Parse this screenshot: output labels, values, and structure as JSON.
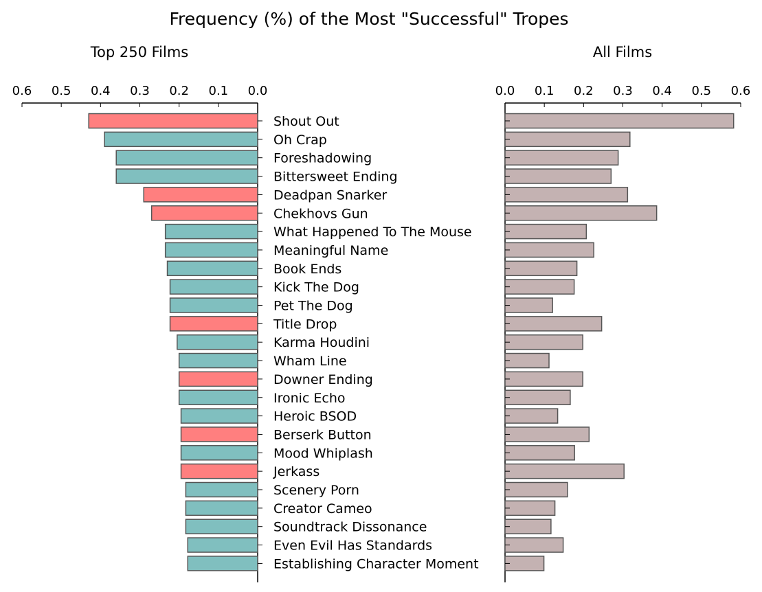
{
  "figure": {
    "title": "Frequency (%) of the Most \"Successful\" Tropes"
  },
  "colors": {
    "teal": "#80bfbf",
    "red": "#ff7f7f",
    "rose": "#c4b2b2",
    "edge": "#555555"
  },
  "chart_data": [
    {
      "type": "bar",
      "orientation": "horizontal",
      "x_direction": "reversed",
      "title": "Top 250 Films",
      "xlim": [
        0.6,
        0.0
      ],
      "xticks": [
        "0.6",
        "0.5",
        "0.4",
        "0.3",
        "0.2",
        "0.1",
        "0.0"
      ],
      "tick_values": [
        0.6,
        0.5,
        0.4,
        0.3,
        0.2,
        0.1,
        0.0
      ],
      "categories": [
        "Shout Out",
        "Oh Crap",
        "Foreshadowing",
        "Bittersweet Ending",
        "Deadpan Snarker",
        "Chekhovs Gun",
        "What Happened To The Mouse",
        "Meaningful Name",
        "Book Ends",
        "Kick The Dog",
        "Pet The Dog",
        "Title Drop",
        "Karma Houdini",
        "Wham Line",
        "Downer Ending",
        "Ironic Echo",
        "Heroic BSOD",
        "Berserk Button",
        "Mood Whiplash",
        "Jerkass",
        "Scenery Porn",
        "Creator Cameo",
        "Soundtrack Dissonance",
        "Even Evil Has Standards",
        "Establishing Character Moment"
      ],
      "values": [
        0.43,
        0.39,
        0.36,
        0.36,
        0.29,
        0.27,
        0.235,
        0.235,
        0.23,
        0.223,
        0.223,
        0.223,
        0.205,
        0.2,
        0.2,
        0.2,
        0.195,
        0.195,
        0.195,
        0.195,
        0.183,
        0.183,
        0.183,
        0.178,
        0.178
      ],
      "bar_colors": [
        "red",
        "teal",
        "teal",
        "teal",
        "red",
        "red",
        "teal",
        "teal",
        "teal",
        "teal",
        "teal",
        "red",
        "teal",
        "teal",
        "red",
        "teal",
        "teal",
        "red",
        "teal",
        "red",
        "teal",
        "teal",
        "teal",
        "teal",
        "teal"
      ]
    },
    {
      "type": "bar",
      "orientation": "horizontal",
      "title": "All Films",
      "xlim": [
        0.0,
        0.6
      ],
      "xticks": [
        "0.0",
        "0.1",
        "0.2",
        "0.3",
        "0.4",
        "0.5",
        "0.6"
      ],
      "tick_values": [
        0.0,
        0.1,
        0.2,
        0.3,
        0.4,
        0.5,
        0.6
      ],
      "categories": [
        "Shout Out",
        "Oh Crap",
        "Foreshadowing",
        "Bittersweet Ending",
        "Deadpan Snarker",
        "Chekhovs Gun",
        "What Happened To The Mouse",
        "Meaningful Name",
        "Book Ends",
        "Kick The Dog",
        "Pet The Dog",
        "Title Drop",
        "Karma Houdini",
        "Wham Line",
        "Downer Ending",
        "Ironic Echo",
        "Heroic BSOD",
        "Berserk Button",
        "Mood Whiplash",
        "Jerkass",
        "Scenery Porn",
        "Creator Cameo",
        "Soundtrack Dissonance",
        "Even Evil Has Standards",
        "Establishing Character Moment"
      ],
      "values": [
        0.582,
        0.318,
        0.288,
        0.27,
        0.312,
        0.386,
        0.207,
        0.226,
        0.183,
        0.176,
        0.121,
        0.246,
        0.198,
        0.112,
        0.198,
        0.166,
        0.134,
        0.214,
        0.177,
        0.303,
        0.159,
        0.127,
        0.117,
        0.148,
        0.099
      ],
      "bar_color": "rose"
    }
  ]
}
